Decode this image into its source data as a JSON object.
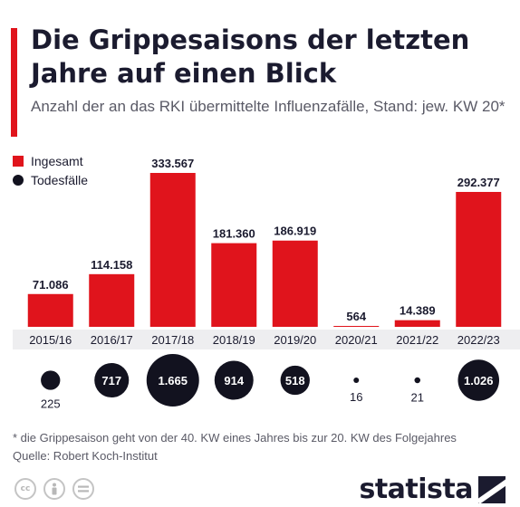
{
  "title": "Die Grippesaisons der letzten Jahre auf einen Blick",
  "subtitle": "Anzahl der an das RKI übermittelte Influenzafälle, Stand: jew. KW 20*",
  "legend": {
    "total": "Ingesamt",
    "deaths": "Todesfälle"
  },
  "colors": {
    "accent": "#e0141c",
    "dark": "#12121f",
    "text": "#1b1b2f",
    "muted": "#5a5a66"
  },
  "chart_data": {
    "type": "bar",
    "categories": [
      "2015/16",
      "2016/17",
      "2017/18",
      "2018/19",
      "2019/20",
      "2020/21",
      "2021/22",
      "2022/23"
    ],
    "series": [
      {
        "name": "Ingesamt",
        "values": [
          71086,
          114158,
          333567,
          181360,
          186919,
          564,
          14389,
          292377
        ],
        "labels": [
          "71.086",
          "114.158",
          "333.567",
          "181.360",
          "186.919",
          "564",
          "14.389",
          "292.377"
        ]
      },
      {
        "name": "Todesfälle",
        "values": [
          225,
          717,
          1665,
          914,
          518,
          16,
          21,
          1026
        ],
        "labels": [
          "225",
          "717",
          "1.665",
          "914",
          "518",
          "16",
          "21",
          "1.026"
        ]
      }
    ],
    "legend_position": "top-left",
    "grid": false
  },
  "footnote": "* die Grippesaison geht von der 40. KW eines Jahres bis zur 20. KW des Folgejahres",
  "source": "Quelle: Robert Koch-Institut",
  "footer": {
    "brand": "statista",
    "icons": [
      "cc-icon",
      "by-icon",
      "nd-icon"
    ]
  }
}
